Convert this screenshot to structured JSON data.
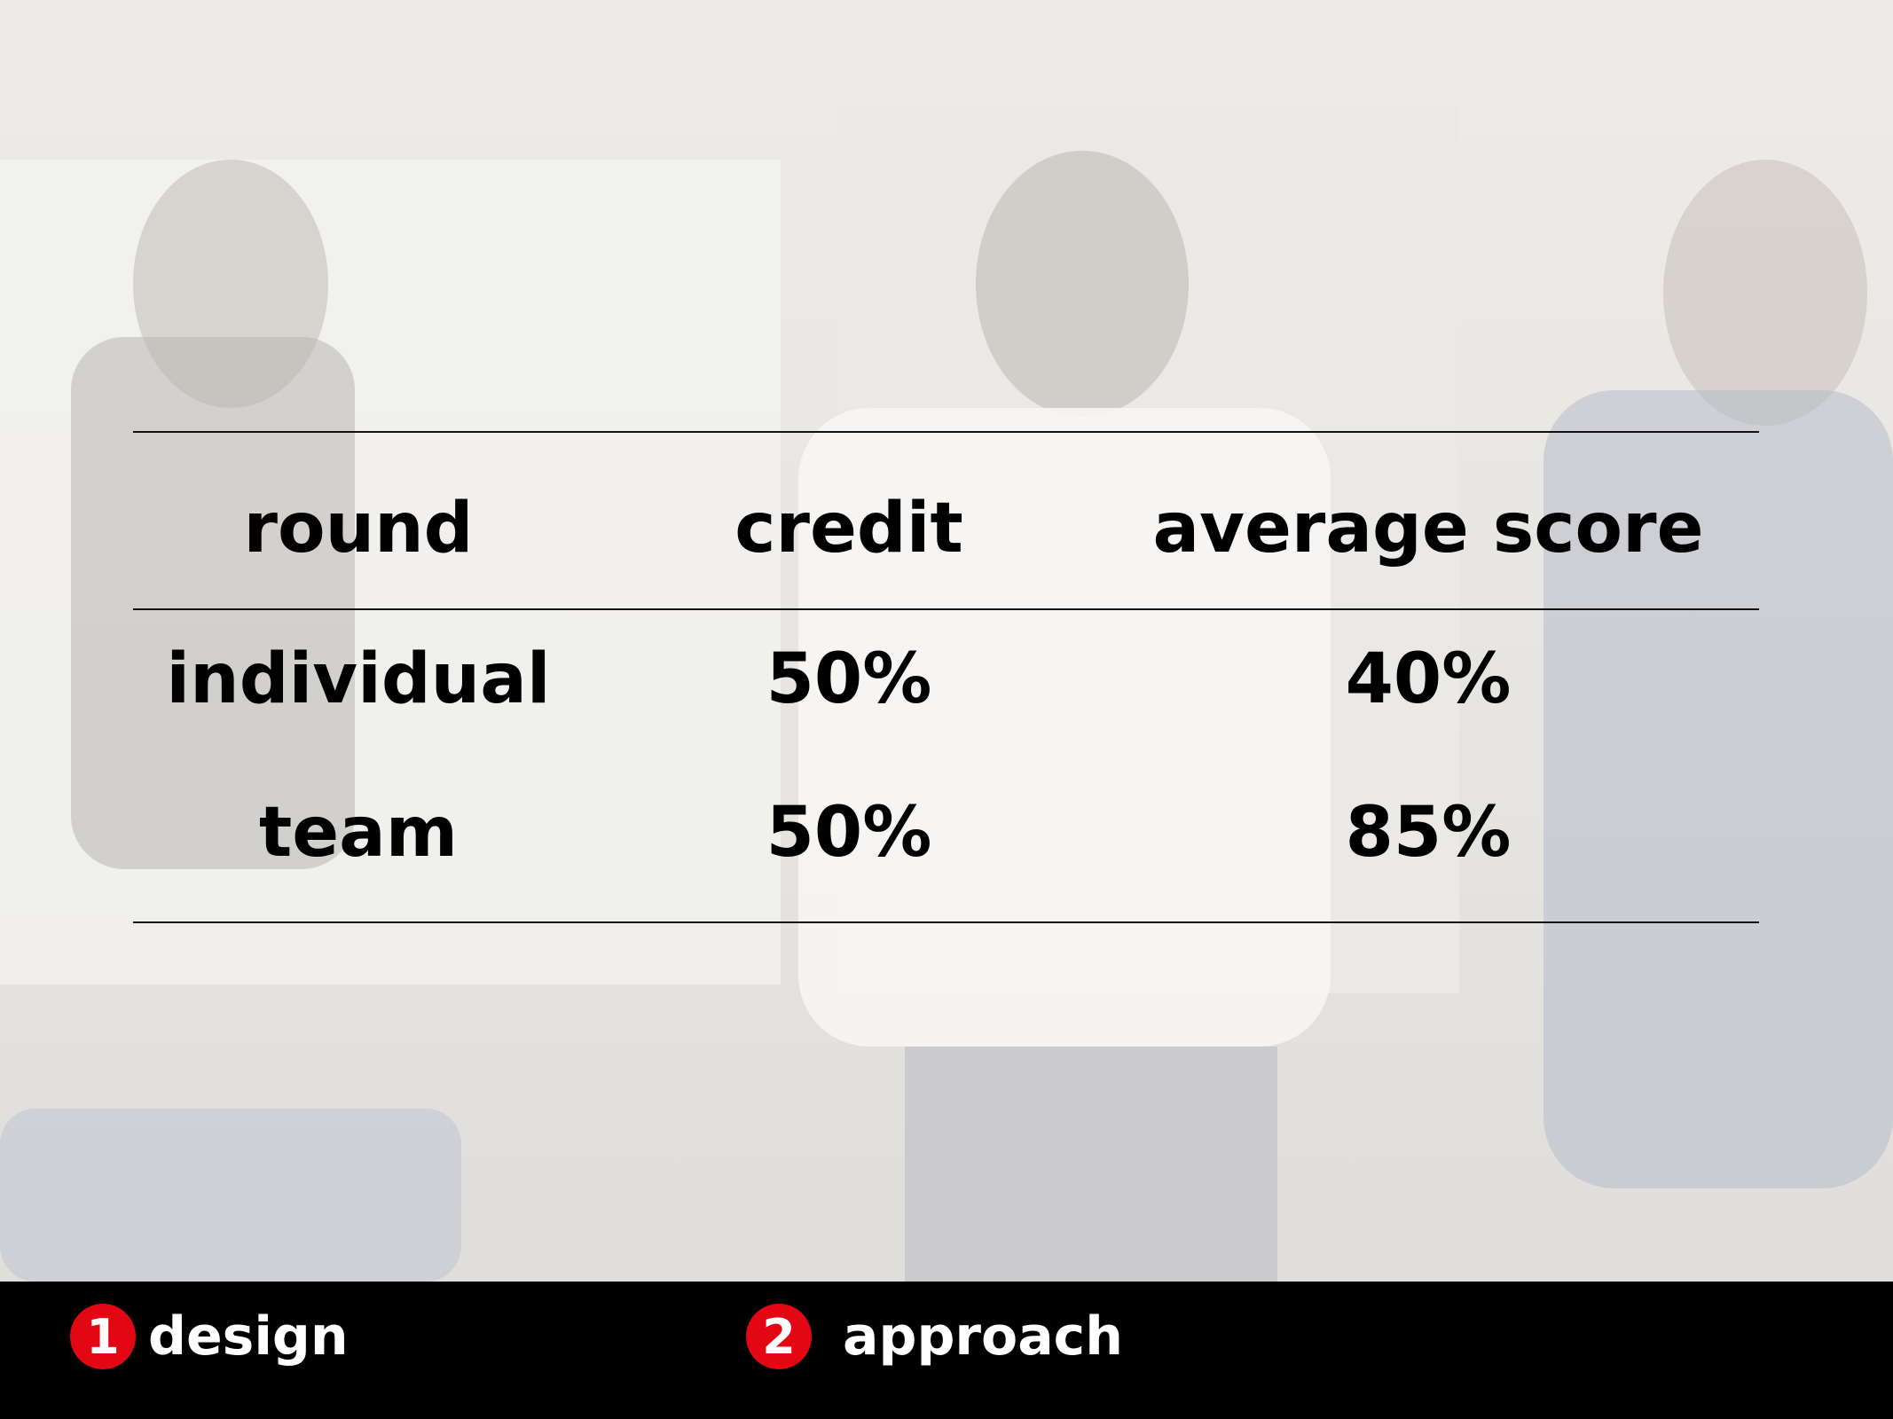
{
  "table": {
    "header": [
      "round",
      "credit",
      "average score"
    ],
    "rows": [
      [
        "individual",
        "50%",
        "40%"
      ],
      [
        "team",
        "50%",
        "85%"
      ]
    ]
  },
  "footer": {
    "items": [
      {
        "number": "1",
        "label": "design"
      },
      {
        "number": "2",
        "label": "approach"
      }
    ]
  }
}
